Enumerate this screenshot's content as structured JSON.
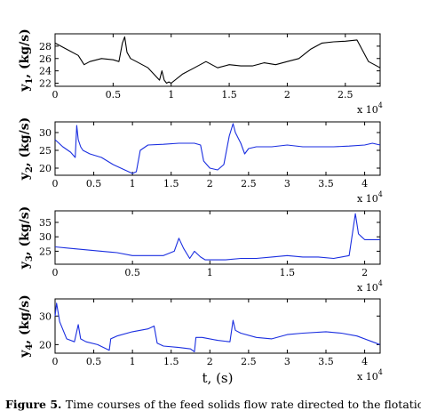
{
  "caption": {
    "label": "Figure 5.",
    "text": "Time courses of the feed solids flow rate directed to the flotation"
  },
  "x_axis_label": "t, (s)",
  "colors": {
    "black_series": "#000000",
    "blue_series": "#1a2ee0"
  },
  "chart_data": [
    {
      "type": "line",
      "ylabel": "y1, (kg/s)",
      "ylabel_parts": {
        "base": "y",
        "sub": "1",
        "rest": ", (kg/s)"
      },
      "xlim": [
        0,
        28000
      ],
      "ylim": [
        21.5,
        30
      ],
      "x_ticks": [
        0,
        0.5,
        1,
        1.5,
        2,
        2.5
      ],
      "y_ticks": [
        22,
        24,
        26,
        28
      ],
      "x_multiplier": {
        "base": "x 10",
        "exp": "4"
      },
      "color": "#000000",
      "x": [
        0,
        1000,
        2000,
        2500,
        3000,
        4000,
        5000,
        5500,
        5800,
        6000,
        6200,
        6500,
        7000,
        8000,
        9000,
        9200,
        9400,
        9600,
        9800,
        10000,
        11000,
        12000,
        13000,
        14000,
        15000,
        16000,
        17000,
        18000,
        19000,
        20000,
        21000,
        22000,
        23000,
        24000,
        25000,
        26000,
        27000,
        27500,
        28000
      ],
      "y": [
        28.5,
        27.5,
        26.5,
        25.0,
        25.5,
        26.0,
        25.8,
        25.5,
        28.5,
        29.5,
        27.0,
        26.0,
        25.5,
        24.5,
        22.5,
        24.0,
        22.5,
        22.0,
        22.2,
        22.0,
        23.5,
        24.5,
        25.5,
        24.5,
        25.0,
        24.8,
        24.8,
        25.3,
        25.0,
        25.5,
        26.0,
        27.5,
        28.5,
        28.7,
        28.8,
        29.0,
        25.5,
        25.0,
        24.5
      ]
    },
    {
      "type": "line",
      "ylabel": "y2, (kg/s)",
      "ylabel_parts": {
        "base": "y",
        "sub": "2",
        "rest": ", (kg/s)"
      },
      "xlim": [
        0,
        42000
      ],
      "ylim": [
        18,
        33
      ],
      "x_ticks": [
        0,
        0.5,
        1,
        1.5,
        2,
        2.5,
        3,
        3.5,
        4
      ],
      "y_ticks": [
        20,
        25,
        30
      ],
      "x_multiplier": {
        "base": "x 10",
        "exp": "4"
      },
      "color": "#1a2ee0",
      "x": [
        0,
        1000,
        2000,
        2600,
        2800,
        3000,
        3300,
        3600,
        4500,
        6000,
        7500,
        9000,
        10000,
        10500,
        11000,
        12000,
        14000,
        16000,
        18000,
        18800,
        19200,
        20000,
        21000,
        21800,
        22500,
        23000,
        23300,
        24000,
        24500,
        25000,
        26000,
        28000,
        30000,
        32000,
        34000,
        36000,
        38000,
        40000,
        41000,
        42000
      ],
      "y": [
        28,
        26,
        24.5,
        23,
        32,
        28,
        26,
        25,
        24,
        23,
        21,
        19.5,
        18.5,
        19.0,
        25,
        26.5,
        26.7,
        27,
        27,
        26.5,
        22,
        20,
        19.5,
        21,
        29,
        32.5,
        30,
        27,
        24,
        25.5,
        26,
        26,
        26.5,
        26,
        26,
        26,
        26.2,
        26.5,
        27,
        26.5
      ]
    },
    {
      "type": "line",
      "ylabel": "y3, (kg/s)",
      "ylabel_parts": {
        "base": "y",
        "sub": "3",
        "rest": ", (kg/s)"
      },
      "xlim": [
        0,
        21000
      ],
      "ylim": [
        20.5,
        39
      ],
      "x_ticks": [
        0,
        0.5,
        1,
        1.5,
        2
      ],
      "y_ticks": [
        25,
        30,
        35
      ],
      "x_multiplier": {
        "base": "x 10",
        "exp": "4"
      },
      "color": "#1a2ee0",
      "x": [
        0,
        1000,
        2000,
        3000,
        4000,
        5000,
        6000,
        7000,
        7700,
        8000,
        8300,
        8700,
        9000,
        9400,
        9700,
        10000,
        11000,
        12000,
        13000,
        14000,
        15000,
        16000,
        17000,
        18000,
        19000,
        19400,
        19600,
        19800,
        20000,
        20500,
        21000
      ],
      "y": [
        26.5,
        26,
        25.5,
        25,
        24.5,
        23.5,
        23.5,
        23.5,
        25,
        29.5,
        26,
        22.5,
        25,
        23,
        22,
        22,
        22,
        22.5,
        22.5,
        23,
        23.5,
        23,
        23,
        22.5,
        23.5,
        38,
        31,
        30,
        29,
        29,
        29
      ]
    },
    {
      "type": "line",
      "ylabel": "y4, (kg/s)",
      "ylabel_parts": {
        "base": "y",
        "sub": "4",
        "rest": ", (kg/s)"
      },
      "xlim": [
        0,
        42000
      ],
      "ylim": [
        17,
        36
      ],
      "x_ticks": [
        0,
        0.5,
        1,
        1.5,
        2,
        2.5,
        3,
        3.5,
        4
      ],
      "y_ticks": [
        20,
        30
      ],
      "x_multiplier": {
        "base": "x 10",
        "exp": "4"
      },
      "color": "#1a2ee0",
      "x": [
        0,
        200,
        600,
        1500,
        2500,
        3000,
        3300,
        4000,
        5500,
        7000,
        7200,
        8000,
        10000,
        12000,
        12800,
        13200,
        14000,
        16000,
        17500,
        18000,
        18200,
        19000,
        21000,
        22600,
        23000,
        23300,
        24000,
        26000,
        28000,
        30000,
        32000,
        35000,
        37000,
        39000,
        41000,
        42000
      ],
      "y": [
        30,
        34.5,
        28,
        22,
        21,
        27,
        22,
        21,
        20,
        18,
        22,
        23,
        24.5,
        25.5,
        26.5,
        20.5,
        19.5,
        19,
        18.5,
        17.5,
        22.5,
        22.5,
        21.5,
        21,
        28.5,
        25,
        24,
        22.5,
        22,
        23.5,
        24,
        24.5,
        24,
        23,
        21,
        20
      ]
    }
  ]
}
